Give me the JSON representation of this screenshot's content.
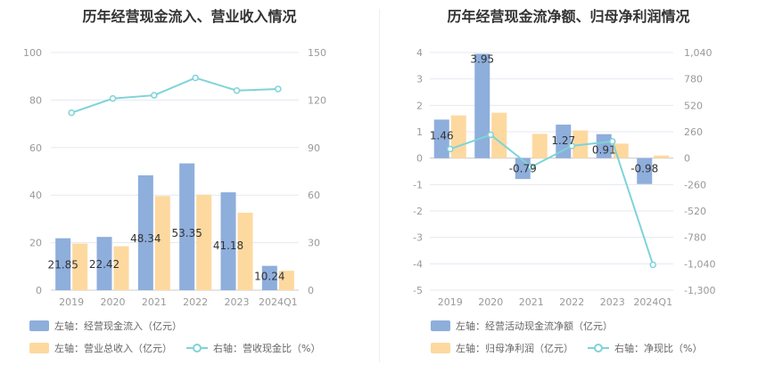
{
  "colors": {
    "bar_blue": "#8eaedc",
    "bar_orange": "#fdd9a0",
    "line_teal": "#7fd3d8",
    "grid": "#e6e8f0",
    "axis_text": "#999999"
  },
  "chart_data": [
    {
      "type": "bar",
      "title": "历年经营现金流入、营业收入情况",
      "categories": [
        "2019",
        "2020",
        "2021",
        "2022",
        "2023",
        "2024Q1"
      ],
      "ylim_left": [
        0,
        100
      ],
      "ylim_right": [
        0,
        150
      ],
      "left_ticks": [
        "0",
        "20",
        "40",
        "60",
        "80",
        "100"
      ],
      "right_ticks": [
        "0",
        "30",
        "60",
        "90",
        "120",
        "150"
      ],
      "series": [
        {
          "name": "左轴：经营现金流入（亿元）",
          "axis": "left",
          "kind": "bar",
          "values": [
            21.85,
            22.42,
            48.34,
            53.35,
            41.18,
            10.24
          ],
          "labels": [
            "21.85",
            "22.42",
            "48.34",
            "53.35",
            "41.18",
            "10.24"
          ]
        },
        {
          "name": "左轴：营业总收入（亿元）",
          "axis": "left",
          "kind": "bar",
          "values": [
            19.6,
            18.5,
            39.6,
            40.2,
            32.6,
            8.2
          ]
        },
        {
          "name": "右轴：营收现金比（%）",
          "axis": "right",
          "kind": "line",
          "values": [
            112,
            121,
            123,
            134,
            126,
            127
          ]
        }
      ],
      "grid": true,
      "legend_position": "bottom-left"
    },
    {
      "type": "bar",
      "title": "历年经营现金流净额、归母净利润情况",
      "categories": [
        "2019",
        "2020",
        "2021",
        "2022",
        "2023",
        "2024Q1"
      ],
      "ylim_left": [
        -5,
        4
      ],
      "ylim_right": [
        -1300,
        1040
      ],
      "left_ticks": [
        "-5",
        "-4",
        "-3",
        "-2",
        "-1",
        "0",
        "1",
        "2",
        "3",
        "4"
      ],
      "right_ticks": [
        "-1,300",
        "-1,040",
        "-780",
        "-520",
        "-260",
        "0",
        "260",
        "520",
        "780",
        "1,040"
      ],
      "series": [
        {
          "name": "左轴：经营活动现金流净额（亿元）",
          "axis": "left",
          "kind": "bar",
          "values": [
            1.46,
            3.95,
            -0.79,
            1.27,
            0.91,
            -0.98
          ],
          "labels": [
            "1.46",
            "3.95",
            "-0.79",
            "1.27",
            "0.91",
            "-0.98"
          ]
        },
        {
          "name": "左轴：归母净利润（亿元）",
          "axis": "left",
          "kind": "bar",
          "values": [
            1.62,
            1.72,
            0.92,
            1.05,
            0.55,
            0.1
          ]
        },
        {
          "name": "右轴：净现比（%）",
          "axis": "right",
          "kind": "line",
          "values": [
            90,
            230,
            -86,
            121,
            165,
            -1050
          ]
        }
      ],
      "grid": true,
      "legend_position": "bottom-left"
    }
  ]
}
